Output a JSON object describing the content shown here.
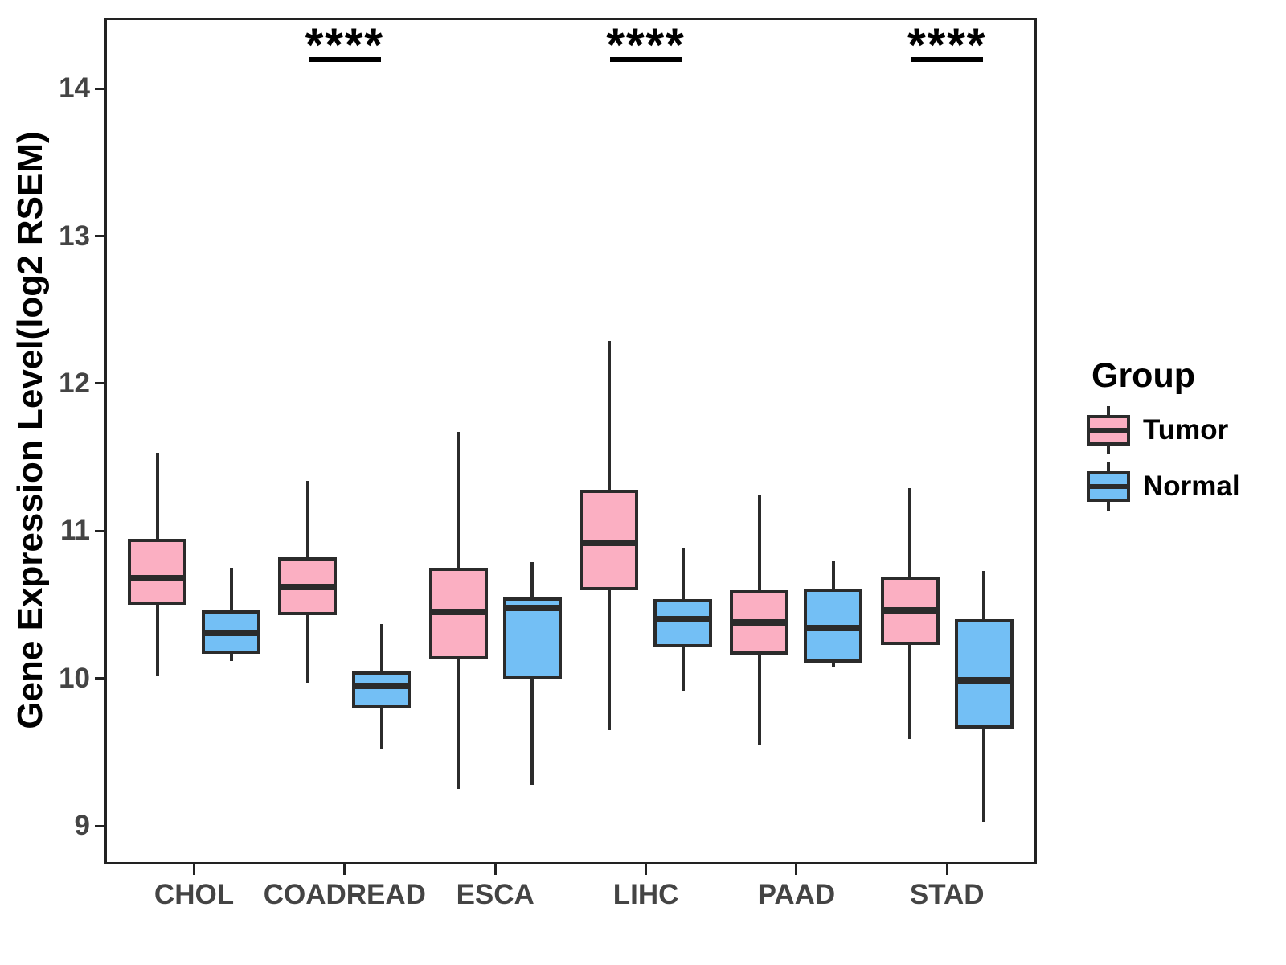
{
  "figure": {
    "background": "#FFFFFF"
  },
  "chart_data": {
    "type": "boxplot",
    "title": "",
    "xlabel": "",
    "ylabel": "Gene Expression Level(log2 RSEM)",
    "categories": [
      "CHOL",
      "COADREAD",
      "ESCA",
      "LIHC",
      "PAAD",
      "STAD"
    ],
    "yticks": [
      9,
      10,
      11,
      12,
      13,
      14
    ],
    "ylim": [
      8.74,
      14.48
    ],
    "grid": false,
    "line_color": "#2B2B2B",
    "axis_color": "#222222",
    "tick_label_color": "#444444",
    "legend": {
      "title": "Group",
      "position": "right",
      "entries": [
        {
          "label": "Tumor",
          "color": "#FBAFC2"
        },
        {
          "label": "Normal",
          "color": "#73BFF5"
        }
      ]
    },
    "series": [
      {
        "name": "Tumor",
        "color": "#FBAFC2",
        "boxes": [
          {
            "category": "CHOL",
            "whisker_low": 10.02,
            "q1": 10.5,
            "median": 10.68,
            "q3": 10.95,
            "whisker_high": 11.53
          },
          {
            "category": "COADREAD",
            "whisker_low": 9.97,
            "q1": 10.43,
            "median": 10.62,
            "q3": 10.82,
            "whisker_high": 11.34
          },
          {
            "category": "ESCA",
            "whisker_low": 9.25,
            "q1": 10.13,
            "median": 10.45,
            "q3": 10.75,
            "whisker_high": 11.67
          },
          {
            "category": "LIHC",
            "whisker_low": 9.65,
            "q1": 10.6,
            "median": 10.92,
            "q3": 11.28,
            "whisker_high": 12.29
          },
          {
            "category": "PAAD",
            "whisker_low": 9.55,
            "q1": 10.16,
            "median": 10.38,
            "q3": 10.6,
            "whisker_high": 11.24
          },
          {
            "category": "STAD",
            "whisker_low": 9.59,
            "q1": 10.23,
            "median": 10.46,
            "q3": 10.69,
            "whisker_high": 11.29
          }
        ]
      },
      {
        "name": "Normal",
        "color": "#73BFF5",
        "boxes": [
          {
            "category": "CHOL",
            "whisker_low": 10.12,
            "q1": 10.17,
            "median": 10.31,
            "q3": 10.46,
            "whisker_high": 10.75
          },
          {
            "category": "COADREAD",
            "whisker_low": 9.52,
            "q1": 9.8,
            "median": 9.95,
            "q3": 10.05,
            "whisker_high": 10.37
          },
          {
            "category": "ESCA",
            "whisker_low": 9.28,
            "q1": 10.0,
            "median": 10.48,
            "q3": 10.55,
            "whisker_high": 10.79
          },
          {
            "category": "LIHC",
            "whisker_low": 9.92,
            "q1": 10.21,
            "median": 10.4,
            "q3": 10.54,
            "whisker_high": 10.88
          },
          {
            "category": "PAAD",
            "whisker_low": 10.08,
            "q1": 10.11,
            "median": 10.34,
            "q3": 10.61,
            "whisker_high": 10.8
          },
          {
            "category": "STAD",
            "whisker_low": 9.03,
            "q1": 9.66,
            "median": 9.99,
            "q3": 10.4,
            "whisker_high": 10.73
          }
        ]
      }
    ],
    "significance": [
      {
        "category": "COADREAD",
        "label": "****"
      },
      {
        "category": "LIHC",
        "label": "****"
      },
      {
        "category": "STAD",
        "label": "****"
      }
    ]
  }
}
